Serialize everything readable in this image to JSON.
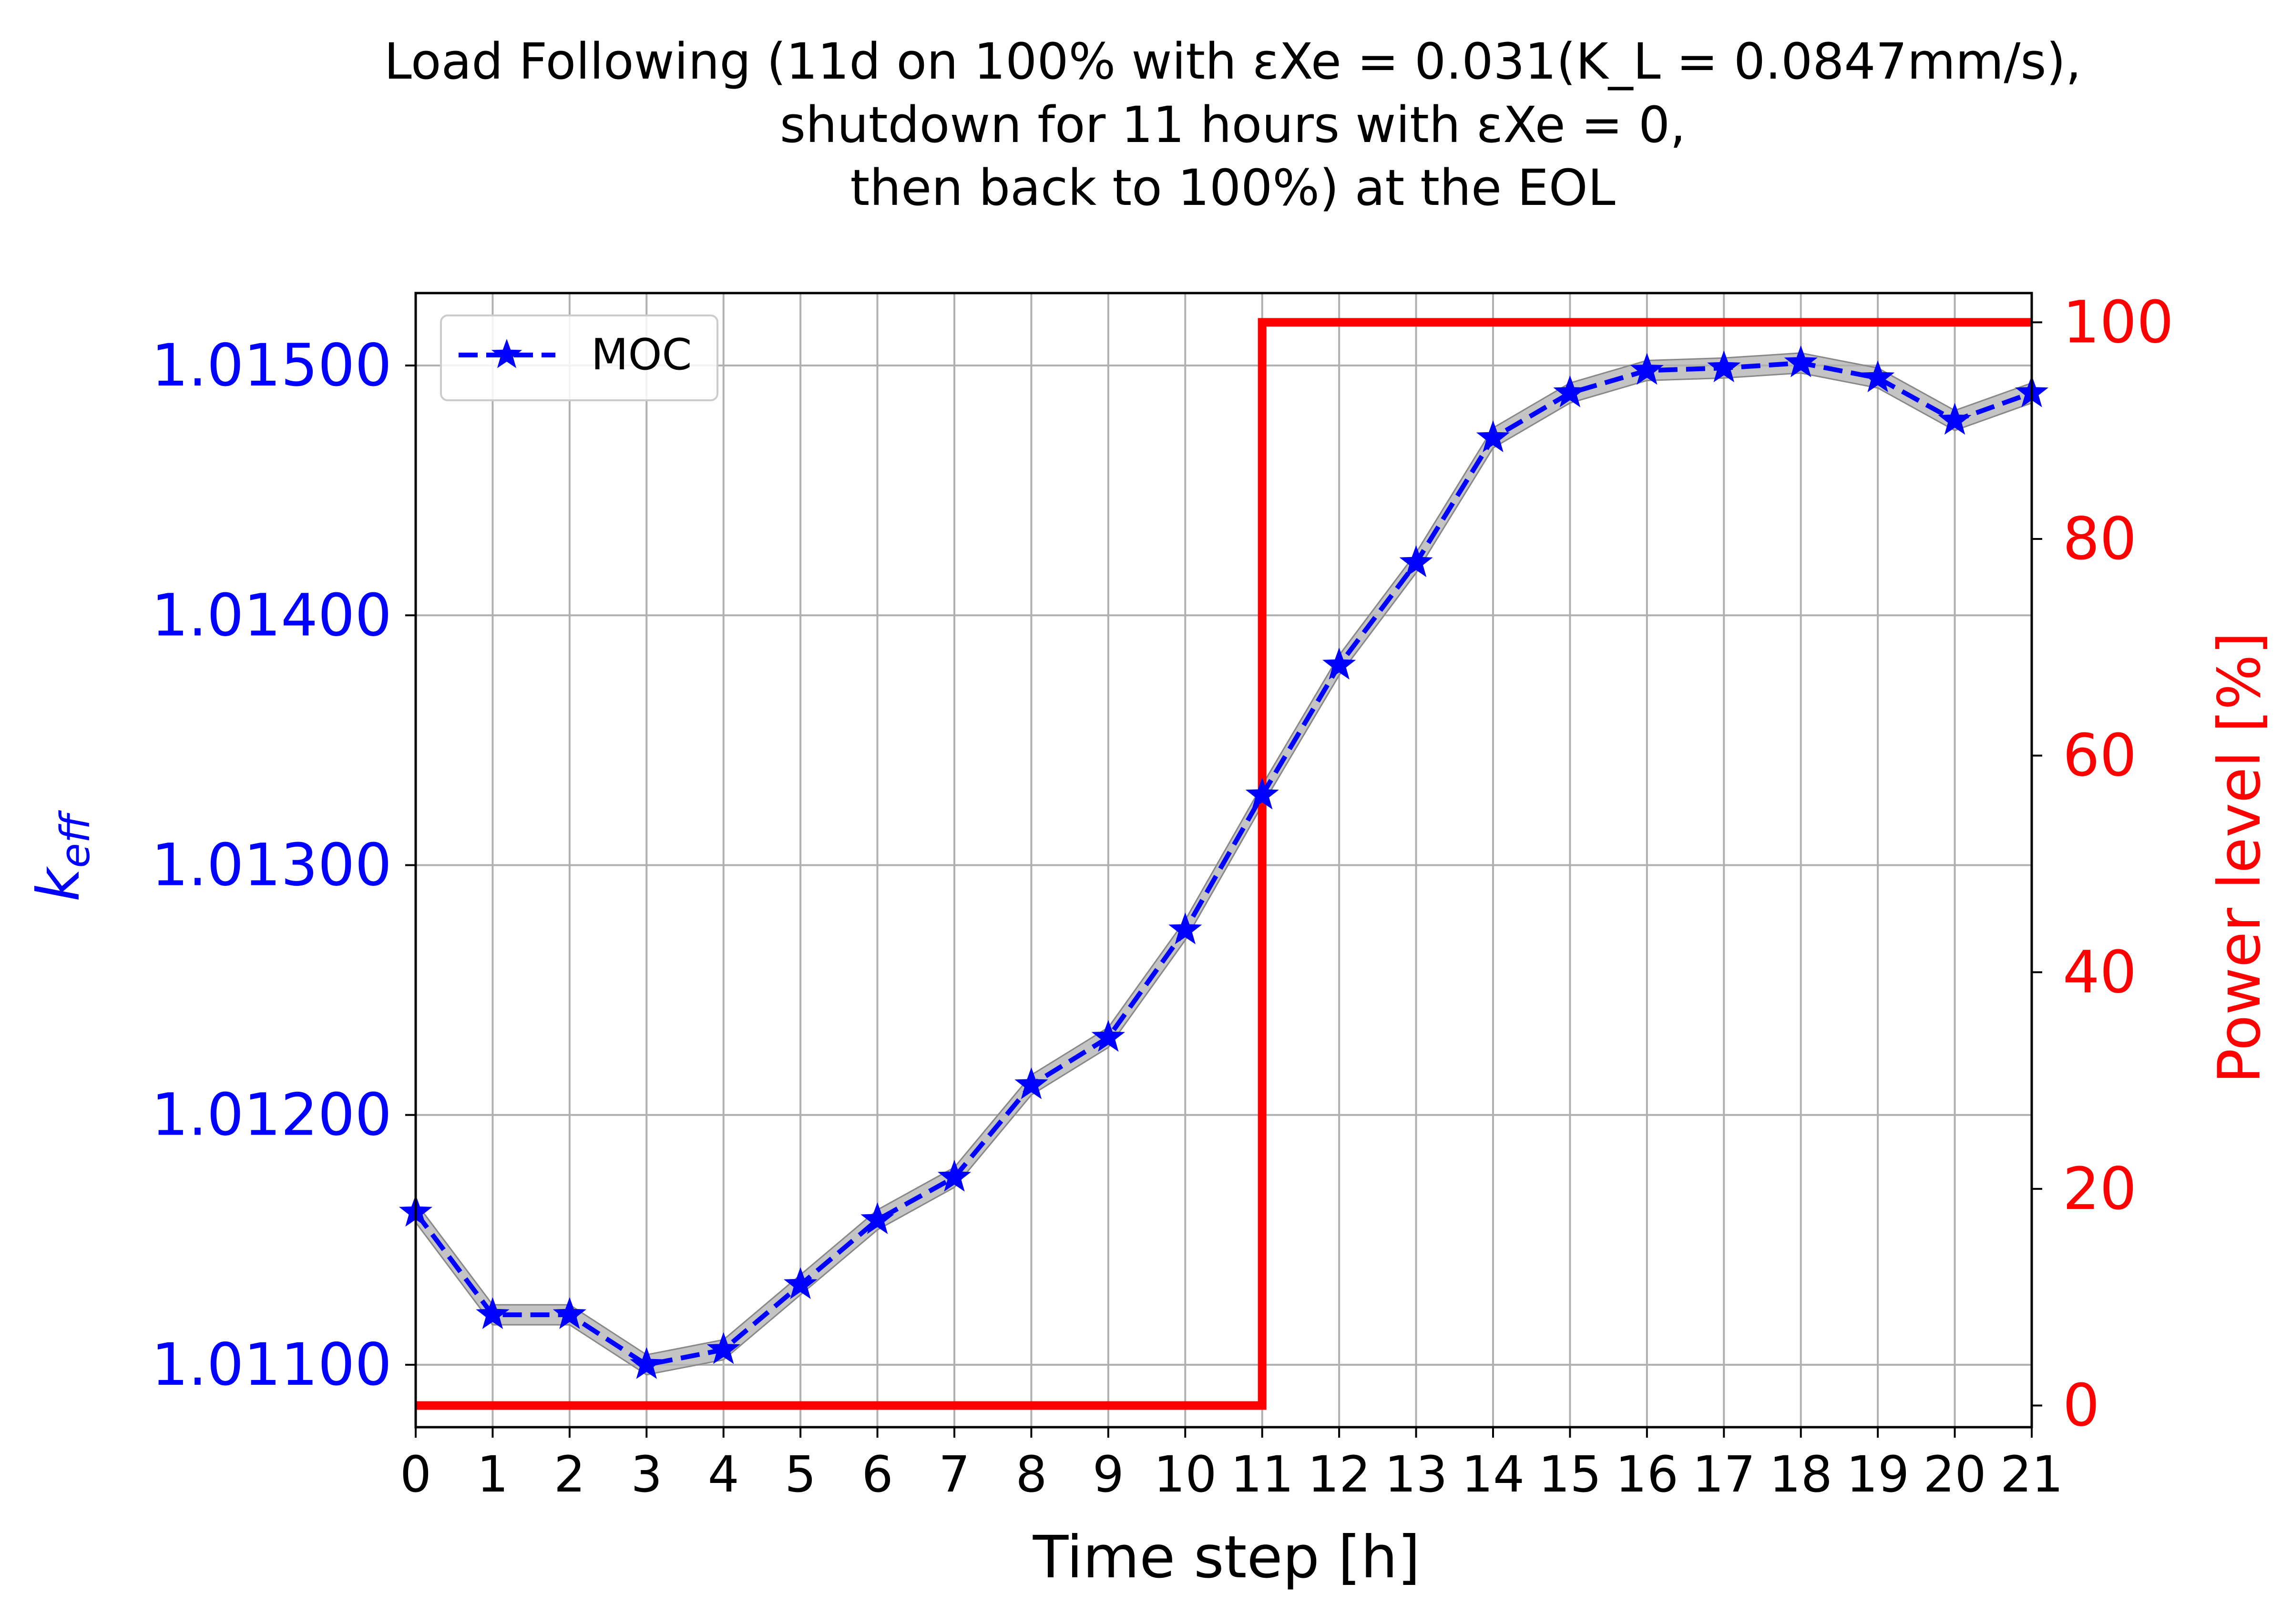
{
  "chart_data": {
    "type": "line",
    "title_lines": [
      "Load Following (11d on 100% with εXe = 0.031(K_L = 0.0847mm/s),",
      "shutdown for 11 hours with εXe = 0,",
      "then back to 100%) at the EOL"
    ],
    "xlabel": "Time step [h]",
    "ylabel_left": "keff",
    "ylabel_right": "Power level [%]",
    "x": [
      0,
      1,
      2,
      3,
      4,
      5,
      6,
      7,
      8,
      9,
      10,
      11,
      12,
      13,
      14,
      15,
      16,
      17,
      18,
      19,
      20,
      21
    ],
    "xlim": [
      0,
      21
    ],
    "xticks": [
      "0",
      "1",
      "2",
      "3",
      "4",
      "5",
      "6",
      "7",
      "8",
      "9",
      "10",
      "11",
      "12",
      "13",
      "14",
      "15",
      "16",
      "17",
      "18",
      "19",
      "20",
      "21"
    ],
    "ylim_left": [
      1.01075,
      1.01529
    ],
    "yticks_left": [
      "1.01100",
      "1.01200",
      "1.01300",
      "1.01400",
      "1.01500"
    ],
    "ylim_right": [
      -2,
      102.7
    ],
    "yticks_right": [
      "0",
      "20",
      "40",
      "60",
      "80",
      "100"
    ],
    "grid": true,
    "legend_position": "upper-left",
    "series": [
      {
        "name": "MOC",
        "axis": "left",
        "style": "dashed-star",
        "color": "#0000ff",
        "band_color": "#b0b0b0",
        "band_half_width": 4e-05,
        "values": [
          1.01161,
          1.0112,
          1.0112,
          1.011,
          1.01106,
          1.01132,
          1.01158,
          1.01175,
          1.01212,
          1.01231,
          1.01274,
          1.01328,
          1.0138,
          1.01421,
          1.01471,
          1.01489,
          1.01498,
          1.01499,
          1.01501,
          1.01495,
          1.01478,
          1.01489
        ]
      },
      {
        "axis": "right",
        "style": "step",
        "color": "#ff0000",
        "x": [
          0,
          11,
          11,
          21
        ],
        "values": [
          0,
          0,
          100,
          100
        ]
      }
    ],
    "colors": {
      "left_axis": "#0000ff",
      "right_axis": "#ff0000",
      "grid": "#b0b0b0"
    }
  }
}
